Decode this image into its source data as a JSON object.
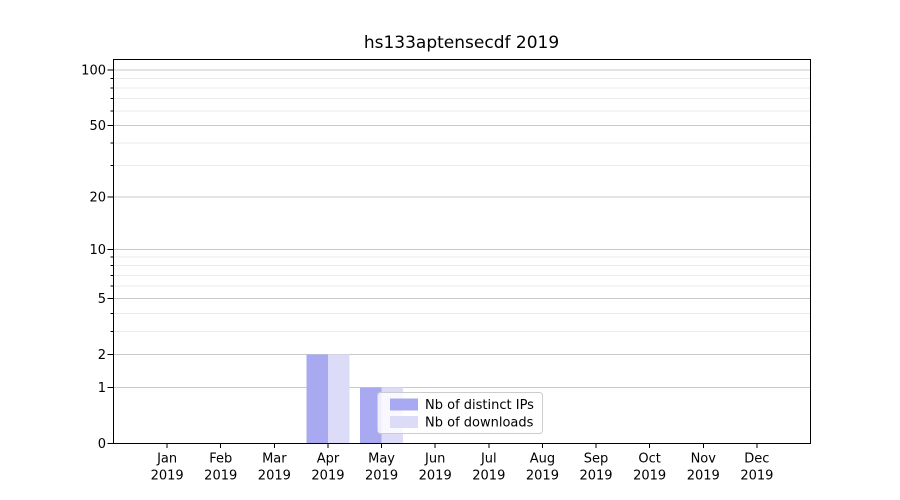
{
  "chart_data": {
    "type": "bar",
    "title": "hs133aptensecdf 2019",
    "categories": [
      "Jan",
      "Feb",
      "Mar",
      "Apr",
      "May",
      "Jun",
      "Jul",
      "Aug",
      "Sep",
      "Oct",
      "Nov",
      "Dec"
    ],
    "x_tick_year": "2019",
    "series": [
      {
        "name": "Nb of distinct IPs",
        "color": "#a9a9f2",
        "values": [
          0,
          0,
          0,
          2,
          1,
          0,
          0,
          0,
          0,
          0,
          0,
          0
        ]
      },
      {
        "name": "Nb of downloads",
        "color": "#dcdcf9",
        "values": [
          0,
          0,
          0,
          2,
          1,
          0,
          0,
          0,
          0,
          0,
          0,
          0
        ]
      }
    ],
    "yscale": "log1p",
    "ylim": [
      0,
      115
    ],
    "yticks_major": [
      0,
      1,
      2,
      5,
      10,
      20,
      50,
      100
    ],
    "yticks_minor": [
      3,
      4,
      6,
      7,
      8,
      9,
      30,
      40,
      60,
      70,
      80,
      90
    ],
    "grid": "horizontal",
    "legend": {
      "entries": [
        "Nb of distinct IPs",
        "Nb of downloads"
      ],
      "position": "lower-center"
    },
    "colors": {
      "grid_major": "#c9c9c9",
      "grid_minor": "#ebebeb",
      "axis": "#000000",
      "legend_border": "#cccccc",
      "legend_bg": "#ffffff"
    }
  }
}
